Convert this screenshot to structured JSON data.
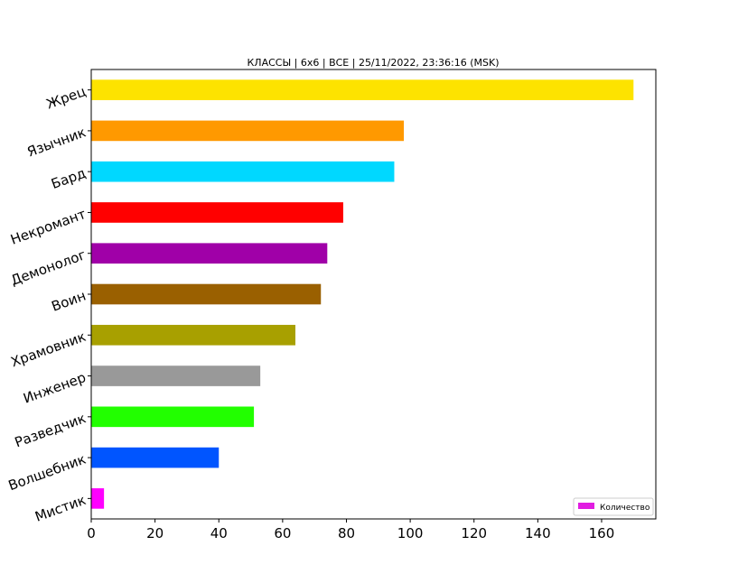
{
  "chart_data": {
    "type": "bar",
    "orientation": "horizontal",
    "title": "КЛАССЫ | 6x6 | ВСЕ | 25/11/2022, 23:36:16 (MSK)",
    "xlabel": "",
    "ylabel": "",
    "xlim": [
      0,
      177
    ],
    "xticks": [
      0,
      20,
      40,
      60,
      80,
      100,
      120,
      140,
      160
    ],
    "grid": false,
    "legend": {
      "position": "bottom-right",
      "label": "Количество",
      "color": "#e11de1"
    },
    "categories": [
      "Жрец",
      "Язычник",
      "Бард",
      "Некромант",
      "Демонолог",
      "Воин",
      "Храмовник",
      "Инженер",
      "Разведчик",
      "Волшебник",
      "Мистик"
    ],
    "series": [
      {
        "name": "Количество",
        "values": [
          170,
          98,
          95,
          79,
          74,
          72,
          64,
          53,
          51,
          40,
          4
        ]
      }
    ],
    "colors": [
      "#fde300",
      "#ff9900",
      "#00d8ff",
      "#ff0000",
      "#a000a8",
      "#9a6000",
      "#a8a000",
      "#999999",
      "#22ff00",
      "#0055ff",
      "#ff00ff"
    ]
  }
}
